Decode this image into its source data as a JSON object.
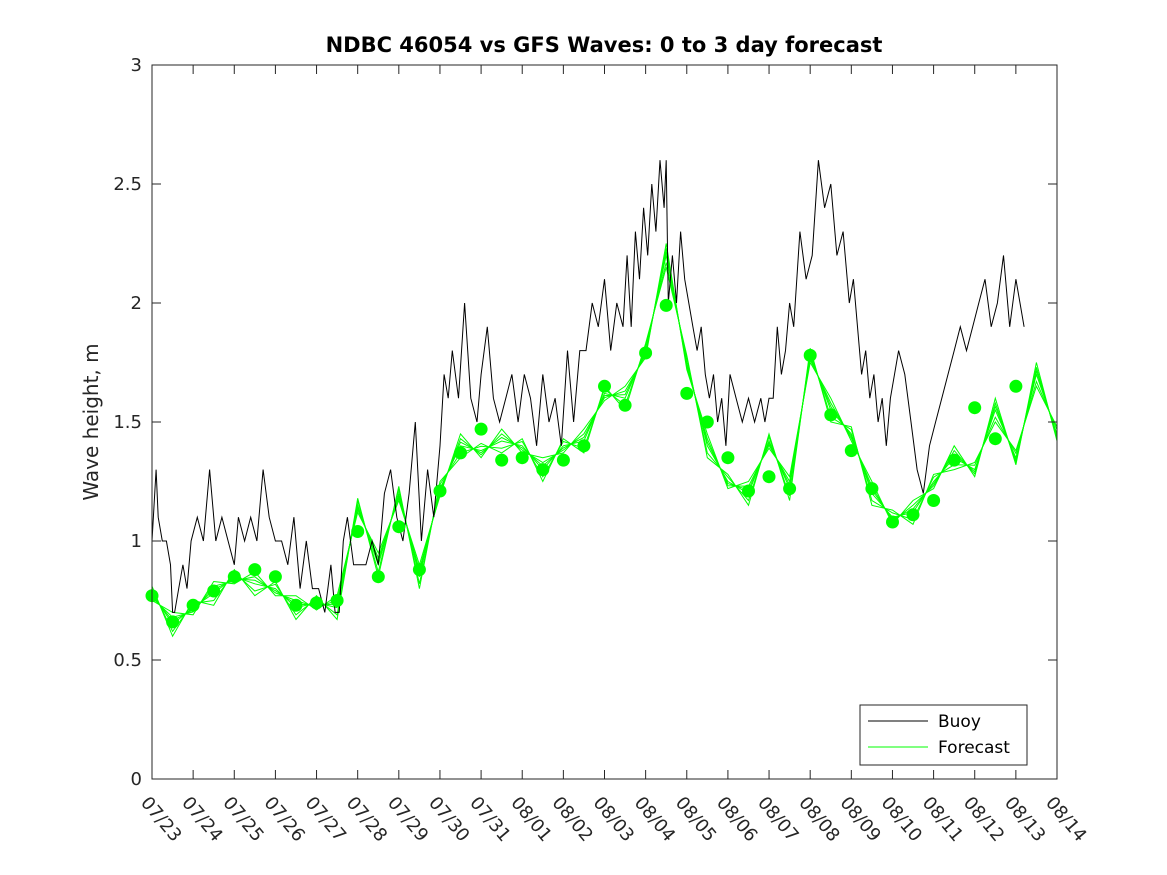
{
  "chart_data": {
    "type": "line",
    "title": "NDBC 46054 vs GFS Waves: 0 to 3 day forecast",
    "xlabel": "",
    "ylabel": "Wave height, m",
    "xlim": [
      "07/23",
      "08/14"
    ],
    "ylim": [
      0,
      3
    ],
    "grid": false,
    "legend_position": "bottom-right",
    "x_tick_labels": [
      "07/23",
      "07/24",
      "07/25",
      "07/26",
      "07/27",
      "07/28",
      "07/29",
      "07/30",
      "07/31",
      "08/01",
      "08/02",
      "08/03",
      "08/04",
      "08/05",
      "08/06",
      "08/07",
      "08/08",
      "08/09",
      "08/10",
      "08/11",
      "08/12",
      "08/13",
      "08/14"
    ],
    "y_tick_labels": [
      "0",
      "0.5",
      "1",
      "1.5",
      "2",
      "2.5",
      "3"
    ],
    "y_ticks": [
      0,
      0.5,
      1,
      1.5,
      2,
      2.5,
      3
    ],
    "colors": {
      "buoy": "#000000",
      "forecast": "#00ff00",
      "axis": "#262626"
    },
    "series": [
      {
        "name": "Buoy",
        "kind": "line",
        "x_days": [
          0,
          0.1,
          0.15,
          0.25,
          0.35,
          0.45,
          0.5,
          0.55,
          0.65,
          0.75,
          0.85,
          0.95,
          1.1,
          1.25,
          1.4,
          1.55,
          1.7,
          1.85,
          2.0,
          2.1,
          2.25,
          2.4,
          2.55,
          2.7,
          2.85,
          3.0,
          3.15,
          3.3,
          3.45,
          3.6,
          3.75,
          3.9,
          4.05,
          4.2,
          4.35,
          4.45,
          4.55,
          4.65,
          4.75,
          4.9,
          5.05,
          5.2,
          5.35,
          5.5,
          5.65,
          5.8,
          5.95,
          6.1,
          6.25,
          6.4,
          6.55,
          6.7,
          6.85,
          7.0,
          7.1,
          7.2,
          7.3,
          7.45,
          7.6,
          7.75,
          7.9,
          8.0,
          8.15,
          8.3,
          8.45,
          8.6,
          8.75,
          8.9,
          9.05,
          9.2,
          9.35,
          9.5,
          9.65,
          9.8,
          9.95,
          10.1,
          10.25,
          10.4,
          10.55,
          10.7,
          10.85,
          11.0,
          11.15,
          11.3,
          11.45,
          11.55,
          11.65,
          11.75,
          11.85,
          11.95,
          12.05,
          12.15,
          12.25,
          12.35,
          12.45,
          12.5,
          12.55,
          12.65,
          12.75,
          12.85,
          12.95,
          13.05,
          13.15,
          13.25,
          13.35,
          13.45,
          13.55,
          13.65,
          13.75,
          13.85,
          13.95,
          14.05,
          14.2,
          14.35,
          14.5,
          14.65,
          14.8,
          14.9,
          15.0,
          15.1,
          15.2,
          15.3,
          15.4,
          15.5,
          15.6,
          15.75,
          15.9,
          16.05,
          16.2,
          16.35,
          16.5,
          16.65,
          16.8,
          16.95,
          17.05,
          17.15,
          17.25,
          17.35,
          17.45,
          17.55,
          17.65,
          17.75,
          17.85,
          17.95,
          18.05,
          18.15,
          18.3,
          18.45,
          18.6,
          18.75,
          18.9,
          19.05,
          19.2,
          19.35,
          19.5,
          19.65,
          19.8,
          19.95,
          20.1,
          20.25,
          20.4,
          20.55,
          20.7,
          20.85,
          21.0,
          21.1,
          21.2
        ],
        "values": [
          1.0,
          1.3,
          1.1,
          1.0,
          1.0,
          0.9,
          0.7,
          0.7,
          0.8,
          0.9,
          0.8,
          1.0,
          1.1,
          1.0,
          1.3,
          1.0,
          1.1,
          1.0,
          0.9,
          1.1,
          1.0,
          1.1,
          1.0,
          1.3,
          1.1,
          1.0,
          1.0,
          0.9,
          1.1,
          0.8,
          1.0,
          0.8,
          0.8,
          0.7,
          0.9,
          0.7,
          0.7,
          1.0,
          1.1,
          0.9,
          0.9,
          0.9,
          1.0,
          0.9,
          1.2,
          1.3,
          1.1,
          1.0,
          1.2,
          1.5,
          1.0,
          1.3,
          1.1,
          1.4,
          1.7,
          1.6,
          1.8,
          1.6,
          2.0,
          1.6,
          1.5,
          1.7,
          1.9,
          1.6,
          1.5,
          1.6,
          1.7,
          1.5,
          1.7,
          1.6,
          1.4,
          1.7,
          1.5,
          1.6,
          1.4,
          1.8,
          1.5,
          1.8,
          1.8,
          2.0,
          1.9,
          2.1,
          1.8,
          2.0,
          1.9,
          2.2,
          1.9,
          2.3,
          2.1,
          2.4,
          2.2,
          2.5,
          2.3,
          2.6,
          2.4,
          2.6,
          2.0,
          2.2,
          2.0,
          2.3,
          2.1,
          2.0,
          1.9,
          1.8,
          1.9,
          1.7,
          1.6,
          1.7,
          1.5,
          1.6,
          1.4,
          1.7,
          1.6,
          1.5,
          1.6,
          1.5,
          1.6,
          1.5,
          1.6,
          1.6,
          1.9,
          1.7,
          1.8,
          2.0,
          1.9,
          2.3,
          2.1,
          2.2,
          2.6,
          2.4,
          2.5,
          2.2,
          2.3,
          2.0,
          2.1,
          1.9,
          1.7,
          1.8,
          1.6,
          1.7,
          1.5,
          1.6,
          1.4,
          1.6,
          1.7,
          1.8,
          1.7,
          1.5,
          1.3,
          1.2,
          1.4,
          1.5,
          1.6,
          1.7,
          1.8,
          1.9,
          1.8,
          1.9,
          2.0,
          2.1,
          1.9,
          2.0,
          2.2,
          1.9,
          2.1,
          2.0,
          1.9
        ]
      },
      {
        "name": "Forecast",
        "kind": "line",
        "x_days": [
          0,
          0.5,
          1.0,
          1.5,
          2.0,
          2.5,
          3.0,
          3.5,
          4.0,
          4.5,
          5.0,
          5.5,
          6.0,
          6.5,
          7.0,
          7.5,
          8.0,
          8.5,
          9.0,
          9.5,
          10.0,
          10.5,
          11.0,
          11.5,
          12.0,
          12.5,
          13.0,
          13.5,
          14.0,
          14.5,
          15.0,
          15.5,
          16.0,
          16.5,
          17.0,
          17.5,
          18.0,
          18.5,
          19.0,
          19.5,
          20.0,
          20.5,
          21.0,
          21.5,
          22.0
        ],
        "values": [
          0.78,
          0.65,
          0.72,
          0.78,
          0.85,
          0.82,
          0.8,
          0.72,
          0.74,
          0.72,
          1.15,
          0.9,
          1.2,
          0.85,
          1.22,
          1.4,
          1.38,
          1.42,
          1.4,
          1.3,
          1.4,
          1.42,
          1.62,
          1.6,
          1.8,
          2.2,
          1.75,
          1.4,
          1.25,
          1.2,
          1.42,
          1.22,
          1.78,
          1.55,
          1.45,
          1.2,
          1.1,
          1.12,
          1.25,
          1.35,
          1.3,
          1.55,
          1.35,
          1.7,
          1.45
        ]
      },
      {
        "name": "",
        "kind": "markers",
        "x_days": [
          0,
          0.5,
          1.0,
          1.5,
          2.0,
          2.5,
          3.0,
          3.5,
          4.0,
          4.5,
          5.0,
          5.5,
          6.0,
          6.5,
          7.0,
          7.5,
          8.0,
          8.5,
          9.0,
          9.5,
          10.0,
          10.5,
          11.0,
          11.5,
          12.0,
          12.5,
          13.0,
          13.5,
          14.0,
          14.5,
          15.0,
          15.5,
          16.0,
          16.5,
          17.0,
          17.5,
          18.0,
          18.5,
          19.0,
          19.5,
          20.0,
          20.5,
          21.0
        ],
        "values": [
          0.77,
          0.66,
          0.73,
          0.79,
          0.85,
          0.88,
          0.85,
          0.73,
          0.74,
          0.75,
          1.04,
          0.85,
          1.06,
          0.88,
          1.21,
          1.37,
          1.47,
          1.34,
          1.35,
          1.3,
          1.34,
          1.4,
          1.65,
          1.57,
          1.79,
          1.99,
          1.62,
          1.5,
          1.35,
          1.21,
          1.27,
          1.22,
          1.78,
          1.53,
          1.38,
          1.22,
          1.08,
          1.11,
          1.17,
          1.34,
          1.56,
          1.43,
          1.65
        ]
      }
    ]
  }
}
